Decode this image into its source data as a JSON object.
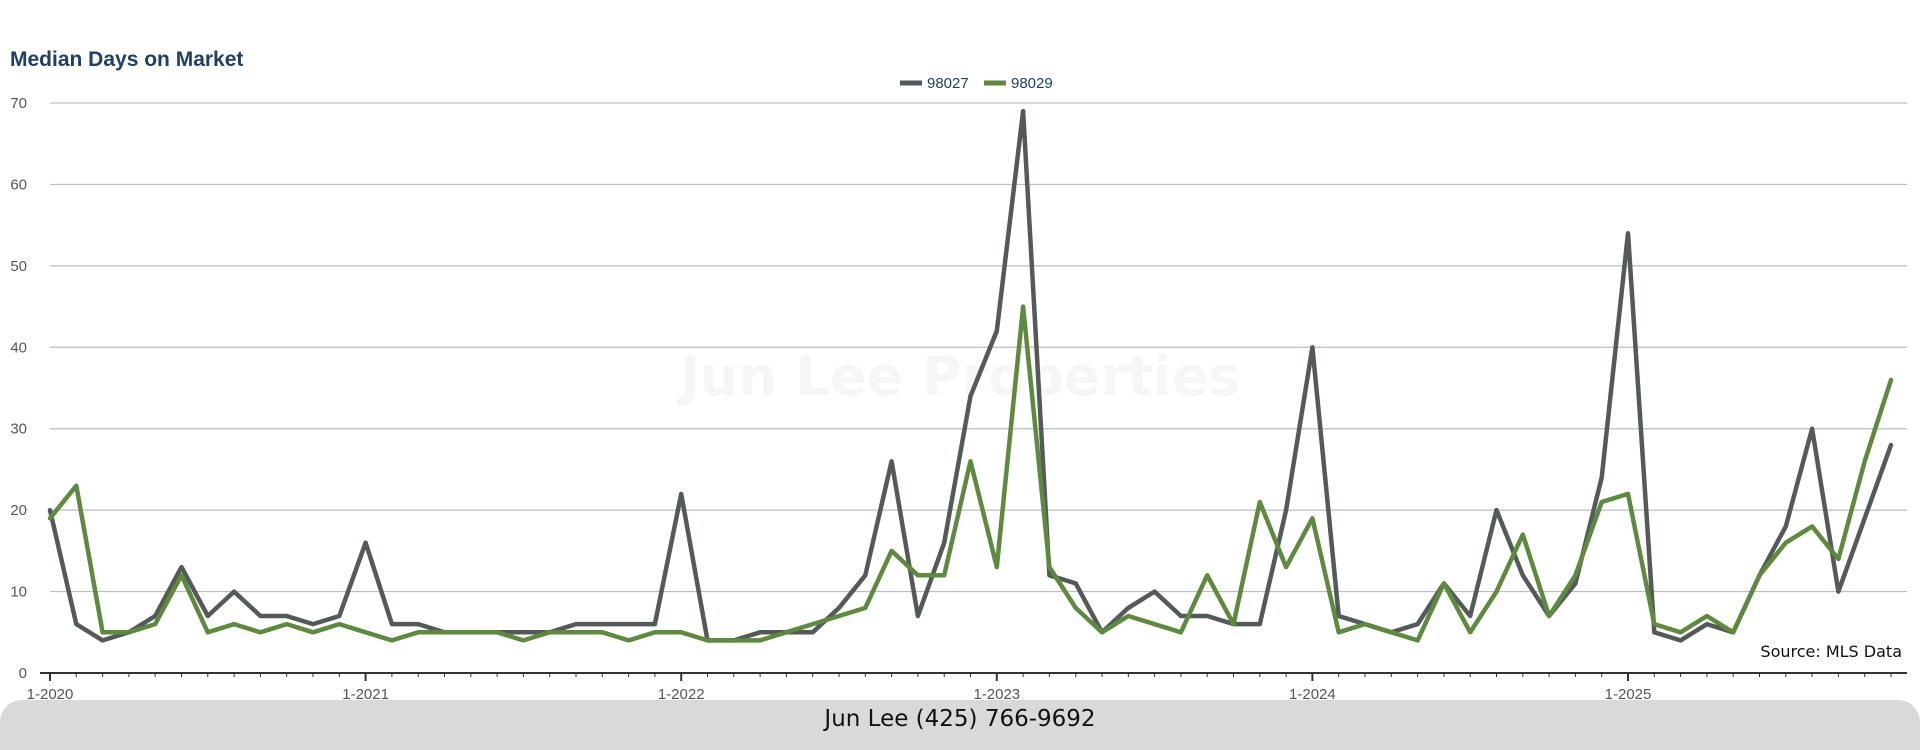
{
  "chart_data": {
    "type": "line",
    "title": "Median Days on Market",
    "ylim": [
      0,
      70
    ],
    "y_ticks": [
      "0",
      "10",
      "20",
      "30",
      "40",
      "50",
      "60",
      "70"
    ],
    "x_tick_labels": [
      "1-2020",
      "1-2021",
      "1-2022",
      "1-2023",
      "1-2024",
      "1-2025"
    ],
    "x_start": "1-2020",
    "x_end": "12-2025",
    "grid": true,
    "legend_position": "top-center",
    "series": [
      {
        "name": "98027",
        "color": "#545a5a",
        "values": [
          20,
          6,
          4,
          5,
          7,
          13,
          7,
          10,
          7,
          7,
          6,
          7,
          16,
          6,
          6,
          5,
          5,
          5,
          5,
          5,
          6,
          6,
          6,
          6,
          22,
          4,
          4,
          5,
          5,
          5,
          8,
          12,
          26,
          7,
          16,
          34,
          42,
          69,
          12,
          11,
          5,
          8,
          10,
          7,
          7,
          6,
          6,
          20,
          40,
          7,
          6,
          5,
          6,
          11,
          7,
          20,
          12,
          7,
          11,
          24,
          54,
          5,
          4,
          6,
          5,
          12,
          18,
          30,
          10,
          19,
          28
        ]
      },
      {
        "name": "98029",
        "color": "#5e8a3e",
        "values": [
          19,
          23,
          5,
          5,
          6,
          12,
          5,
          6,
          5,
          6,
          5,
          6,
          5,
          4,
          5,
          5,
          5,
          5,
          4,
          5,
          5,
          5,
          4,
          5,
          5,
          4,
          4,
          4,
          5,
          6,
          7,
          8,
          15,
          12,
          12,
          26,
          13,
          45,
          13,
          8,
          5,
          7,
          6,
          5,
          12,
          6,
          21,
          13,
          19,
          5,
          6,
          5,
          4,
          11,
          5,
          10,
          17,
          7,
          12,
          21,
          22,
          6,
          5,
          7,
          5,
          12,
          16,
          18,
          14,
          26,
          36
        ]
      }
    ],
    "watermark": "Jun Lee Properties",
    "source_note": "Source: MLS Data"
  },
  "footer": {
    "contact": "Jun Lee (425) 766-9692"
  }
}
